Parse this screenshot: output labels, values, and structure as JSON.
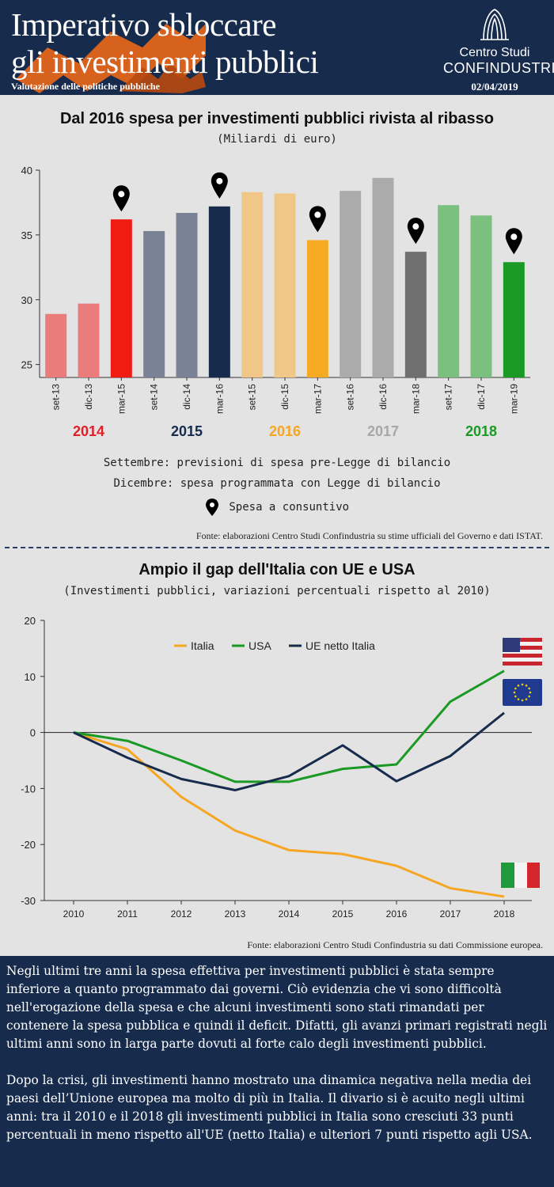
{
  "header": {
    "title_line1": "Imperativo sbloccare",
    "title_line2": "gli investimenti pubblici",
    "subtitle": "Valutazione delle politiche pubbliche",
    "logo_line1": "Centro Studi",
    "logo_line2": "CONFINDUSTRIA",
    "date": "02/04/2019"
  },
  "chart1": {
    "title": "Dal 2016 spesa per investimenti pubblici rivista al ribasso",
    "subtitle": "(Miliardi di euro)",
    "note_line1": "Settembre: previsioni di spesa pre-Legge di bilancio",
    "note_line2": "Dicembre: spesa programmata con Legge di bilancio",
    "legend_marker": "Spesa a consuntivo",
    "source": "Fonte: elaborazioni Centro Studi Confindustria su stime ufficiali del Governo e dati ISTAT."
  },
  "chart2": {
    "title": "Ampio il gap dell'Italia con UE e USA",
    "subtitle": "(Investimenti pubblici, variazioni percentuali rispetto al 2010)",
    "source": "Fonte: elaborazioni Centro Studi Confindustria su dati Commissione europea."
  },
  "chart_data": [
    {
      "type": "bar",
      "title": "Dal 2016 spesa per investimenti pubblici rivista al ribasso",
      "ylabel": "Miliardi di euro",
      "ylim": [
        24,
        40
      ],
      "yticks": [
        25,
        30,
        35,
        40
      ],
      "categories": [
        "set-13",
        "dic-13",
        "mar-15",
        "set-14",
        "dic-14",
        "mar-16",
        "set-15",
        "dic-15",
        "mar-17",
        "set-16",
        "dic-16",
        "mar-18",
        "set-17",
        "dic-17",
        "mar-19"
      ],
      "values": [
        28.9,
        29.7,
        36.2,
        35.3,
        36.7,
        37.2,
        38.3,
        38.2,
        34.6,
        38.4,
        39.4,
        33.7,
        37.3,
        36.5,
        32.9
      ],
      "colors": [
        "#eb7c7c",
        "#eb7c7c",
        "#f01c14",
        "#7a8395",
        "#7a8395",
        "#172b4d",
        "#f0c787",
        "#f0c787",
        "#f5aa22",
        "#ababab",
        "#ababab",
        "#6f6f6f",
        "#7cc07f",
        "#7cc07f",
        "#1a9a24"
      ],
      "markers": [
        2,
        5,
        8,
        11,
        14
      ],
      "groups": [
        {
          "label": "2014",
          "color": "#e21f26"
        },
        {
          "label": "2015",
          "color": "#172b4d"
        },
        {
          "label": "2016",
          "color": "#f5a623"
        },
        {
          "label": "2017",
          "color": "#a7a7a7"
        },
        {
          "label": "2018",
          "color": "#1a9a24"
        }
      ]
    },
    {
      "type": "line",
      "title": "Ampio il gap dell'Italia con UE e USA",
      "ylabel": "Variazioni percentuali rispetto al 2010",
      "ylim": [
        -30,
        20
      ],
      "yticks": [
        20,
        10,
        0,
        -10,
        -20,
        -30
      ],
      "x": [
        "2010",
        "2011",
        "2012",
        "2013",
        "2014",
        "2015",
        "2016",
        "2017",
        "2018"
      ],
      "series": [
        {
          "name": "Italia",
          "color": "#f5a623",
          "values": [
            0,
            -3,
            -11.5,
            -17.5,
            -21,
            -21.7,
            -23.8,
            -27.8,
            -29.3
          ]
        },
        {
          "name": "USA",
          "color": "#1a9a24",
          "values": [
            0,
            -1.5,
            -5,
            -8.8,
            -8.8,
            -6.5,
            -5.7,
            5.5,
            11
          ]
        },
        {
          "name": "UE netto Italia",
          "color": "#172b4d",
          "values": [
            0,
            -4.5,
            -8.3,
            -10.3,
            -7.8,
            -2.3,
            -8.7,
            -4.2,
            3.5
          ]
        }
      ]
    }
  ],
  "text": {
    "p1": "Negli ultimi tre anni la spesa effettiva per investimenti pubblici è stata sempre inferiore a quanto programmato dai governi. Ciò evidenzia che vi sono difficoltà nell'erogazione della spesa e che alcuni investimenti sono stati rimandati per contenere la spesa pubblica e quindi il deficit. Difatti, gli avanzi primari registrati negli ultimi anni sono in larga parte dovuti al forte calo degli investimenti pubblici.",
    "p2": "Dopo la crisi, gli investimenti hanno mostrato una dinamica negativa nella media dei paesi dell’Unione europea ma molto di più in Italia. Il divario si è acuito negli ultimi anni: tra il 2010 e il 2018 gli investimenti pubblici in Italia sono cresciuti 33 punti percentuali in meno rispetto all'UE (netto Italia) e ulteriori 7 punti rispetto agli USA."
  }
}
